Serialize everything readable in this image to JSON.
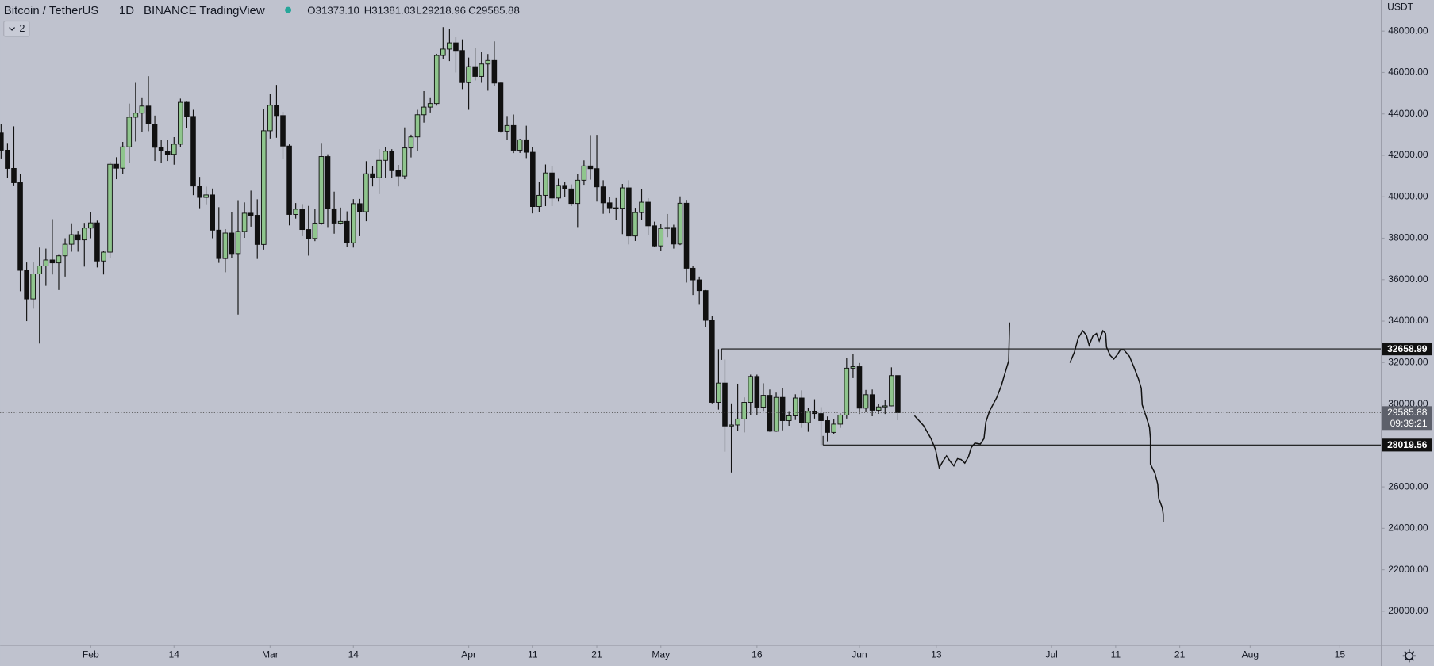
{
  "chart_data": {
    "type": "candlestick",
    "title": "Bitcoin / TetherUS",
    "interval": "1D",
    "exchange": "BINANCE",
    "source": "TradingView",
    "ohlc_text": [
      "O31373.10",
      "H31381.03",
      "L29218.96",
      "C29585.88"
    ],
    "indicator_count": 2,
    "unit": "USDT",
    "countdown": "09:39:21",
    "up_color": "#8fc58d",
    "down_color": "#111111",
    "background": "#bfc2ce",
    "open": [
      43080,
      42250,
      41370,
      40680,
      36450,
      35070,
      36280,
      36660,
      36950,
      36810,
      37150,
      37710,
      38170,
      37920,
      38490,
      38740,
      36900,
      37330,
      41570,
      41380,
      42410,
      43840,
      44040,
      44380,
      43510,
      42390,
      42210,
      42050,
      42540,
      44560,
      43880,
      40520,
      39970,
      40090,
      38390,
      37020,
      38250,
      37260,
      38330,
      39210,
      39110,
      37700,
      43190,
      44420,
      43920,
      42450,
      39150,
      39400,
      38420,
      37990,
      38730,
      41940,
      39420,
      38730,
      38810,
      37780,
      39670,
      39280,
      41110,
      40920,
      41760,
      42200,
      41260,
      41000,
      42360,
      42890,
      43960,
      44330,
      44500,
      46820,
      47130,
      47430,
      47060,
      45510,
      46280,
      45810,
      46410,
      46580,
      45490,
      43170,
      43440,
      42250,
      42750,
      42150,
      39530,
      40070,
      41150,
      39940,
      40550,
      40380,
      39680,
      40800,
      41490,
      41360,
      40480,
      39710,
      39470,
      39450,
      40430,
      38110,
      39240,
      39740,
      38600,
      37630,
      38470,
      38520,
      37720,
      39690,
      36550,
      35990,
      35470,
      34040,
      30080,
      31010,
      28940,
      28990,
      29280,
      30080,
      31330,
      29850,
      30420,
      28690,
      30320,
      29200,
      29430,
      30290,
      29100,
      29650,
      29540,
      29200,
      28630,
      29030,
      29470,
      31730,
      31800,
      29800,
      30450,
      29700,
      29860,
      29910,
      31373.1
    ],
    "high": [
      43500,
      42600,
      43400,
      41100,
      36830,
      36830,
      37550,
      37500,
      38920,
      37230,
      38000,
      38720,
      38360,
      38740,
      39270,
      38850,
      37390,
      41690,
      41910,
      42650,
      44500,
      45500,
      44800,
      45820,
      43920,
      42740,
      42750,
      42880,
      44740,
      44590,
      44200,
      40960,
      40490,
      40400,
      39500,
      38440,
      39280,
      39840,
      39730,
      40300,
      39880,
      44230,
      44950,
      45400,
      44100,
      42530,
      39700,
      39650,
      39560,
      39430,
      42600,
      42050,
      40250,
      39480,
      39300,
      39890,
      39900,
      41720,
      41480,
      42300,
      42400,
      42300,
      41540,
      43350,
      43000,
      44200,
      45100,
      44800,
      46900,
      48190,
      48100,
      47700,
      47600,
      46720,
      47200,
      47000,
      46890,
      47500,
      45510,
      43900,
      43970,
      42800,
      43430,
      42400,
      40700,
      41560,
      41500,
      40870,
      40710,
      40600,
      41100,
      41760,
      42980,
      42990,
      40800,
      39990,
      39940,
      40620,
      40800,
      39470,
      40370,
      39930,
      38800,
      38680,
      39170,
      38650,
      40020,
      39850,
      36660,
      36150,
      35500,
      34250,
      32650,
      32150,
      30030,
      30980,
      30320,
      31420,
      31420,
      31000,
      30700,
      30550,
      30760,
      29620,
      30470,
      30660,
      29830,
      30230,
      29850,
      29400,
      29260,
      29560,
      32220,
      32400,
      31980,
      30680,
      30700,
      29990,
      30190,
      31770,
      31381.03
    ],
    "low": [
      41850,
      40900,
      40550,
      35440,
      34000,
      34600,
      32920,
      35700,
      36250,
      35500,
      36150,
      37350,
      37350,
      36630,
      38000,
      36590,
      36250,
      37050,
      40850,
      41120,
      41650,
      42670,
      43120,
      43170,
      41730,
      41630,
      41730,
      41550,
      42420,
      43310,
      40080,
      39450,
      39640,
      38000,
      36810,
      36360,
      37040,
      34320,
      38020,
      38560,
      37000,
      37450,
      42810,
      42850,
      41830,
      38620,
      38950,
      38100,
      37160,
      37860,
      38650,
      38540,
      38220,
      38660,
      37580,
      37550,
      38100,
      38820,
      40500,
      40130,
      40930,
      40900,
      40500,
      40850,
      41900,
      42200,
      43580,
      44070,
      44400,
      46650,
      46550,
      46000,
      45200,
      44200,
      45620,
      45500,
      45120,
      45350,
      43100,
      42730,
      42110,
      42120,
      41870,
      39200,
      39250,
      39550,
      39550,
      39770,
      39990,
      39550,
      38540,
      40580,
      40830,
      39770,
      39180,
      39200,
      38900,
      38200,
      37700,
      37870,
      38880,
      38170,
      37580,
      37390,
      38050,
      37500,
      37670,
      35860,
      35260,
      34790,
      33710,
      30030,
      29730,
      27700,
      26700,
      28700,
      28630,
      29480,
      29480,
      29630,
      28660,
      28660,
      28730,
      28950,
      29230,
      28850,
      28660,
      29300,
      28020,
      28200,
      28550,
      28850,
      29300,
      31250,
      29520,
      29600,
      29410,
      29530,
      29520,
      29890,
      29218.96
    ],
    "close": [
      42250,
      41370,
      40680,
      36450,
      35070,
      36280,
      36660,
      36950,
      36810,
      37150,
      37710,
      38170,
      37920,
      38490,
      38740,
      36900,
      37330,
      41570,
      41380,
      42410,
      43840,
      44040,
      44380,
      43510,
      42390,
      42210,
      42050,
      42540,
      44560,
      43880,
      40520,
      39970,
      40090,
      38390,
      37020,
      38250,
      37260,
      38330,
      39210,
      39110,
      37700,
      43190,
      44420,
      43920,
      42450,
      39150,
      39400,
      38420,
      37990,
      38730,
      41940,
      39420,
      38730,
      38810,
      37780,
      39670,
      39280,
      41110,
      40920,
      41760,
      42200,
      41260,
      41000,
      42360,
      42890,
      43960,
      44330,
      44500,
      46820,
      47130,
      47430,
      47060,
      45510,
      46280,
      45810,
      46410,
      46580,
      45490,
      43170,
      43440,
      42250,
      42750,
      42150,
      39530,
      40070,
      41150,
      39940,
      40550,
      40380,
      39680,
      40800,
      41490,
      41360,
      40480,
      39710,
      39470,
      39450,
      40430,
      38110,
      39240,
      39740,
      38600,
      37630,
      38470,
      38520,
      37720,
      39690,
      36550,
      35990,
      35470,
      34040,
      30080,
      31010,
      28940,
      28990,
      29280,
      30080,
      31330,
      29850,
      30420,
      28690,
      30320,
      29200,
      29430,
      30290,
      29100,
      29650,
      29540,
      29200,
      28630,
      29030,
      29470,
      31730,
      31800,
      29800,
      30450,
      29700,
      29860,
      29910,
      31370,
      29585.88
    ],
    "levels": [
      32658.99,
      28019.56
    ],
    "xlim": [
      -0.15,
      215.4
    ],
    "xticks": [
      {
        "value": 14,
        "label": "Feb"
      },
      {
        "value": 27,
        "label": "14"
      },
      {
        "value": 42,
        "label": "Mar"
      },
      {
        "value": 55,
        "label": "14"
      },
      {
        "value": 73,
        "label": "Apr"
      },
      {
        "value": 83,
        "label": "11"
      },
      {
        "value": 93,
        "label": "21"
      },
      {
        "value": 103,
        "label": "May"
      },
      {
        "value": 118,
        "label": "16"
      },
      {
        "value": 134,
        "label": "Jun"
      },
      {
        "value": 146,
        "label": "13"
      },
      {
        "value": 164,
        "label": "Jul"
      },
      {
        "value": 174,
        "label": "11"
      },
      {
        "value": 184,
        "label": "21"
      },
      {
        "value": 195,
        "label": "Aug"
      },
      {
        "value": 209,
        "label": "15"
      }
    ],
    "ylim": [
      18370,
      49500
    ],
    "yticks": [
      {
        "value": 20000,
        "label": "20000.00"
      },
      {
        "value": 22000,
        "label": "22000.00"
      },
      {
        "value": 24000,
        "label": "24000.00"
      },
      {
        "value": 26000,
        "label": "26000.00"
      },
      {
        "value": 28000,
        "label": "28000.00"
      },
      {
        "value": 30000,
        "label": "30000.00"
      },
      {
        "value": 32000,
        "label": "32000.00"
      },
      {
        "value": 34000,
        "label": "34000.00"
      },
      {
        "value": 36000,
        "label": "36000.00"
      },
      {
        "value": 38000,
        "label": "38000.00"
      },
      {
        "value": 40000,
        "label": "40000.00"
      },
      {
        "value": 42000,
        "label": "42000.00"
      },
      {
        "value": 44000,
        "label": "44000.00"
      },
      {
        "value": 46000,
        "label": "46000.00"
      },
      {
        "value": 48000,
        "label": "48000.00"
      }
    ]
  }
}
